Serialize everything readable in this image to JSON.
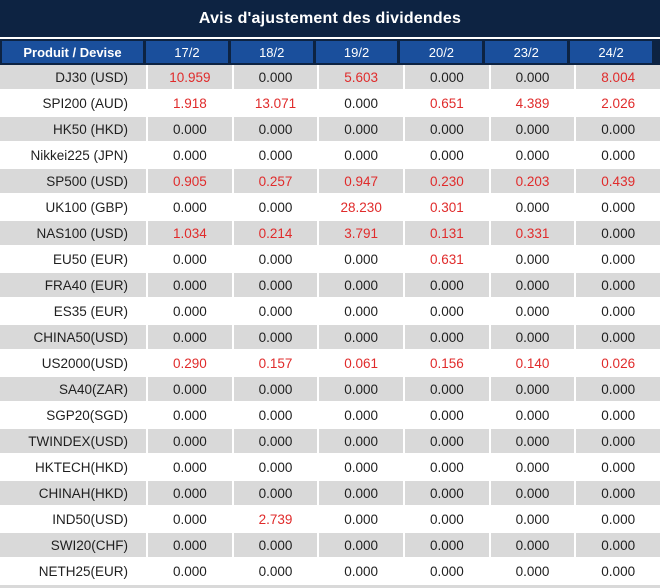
{
  "title": "Avis d'ajustement des dividendes",
  "colors": {
    "title_bar_bg": "#0d2342",
    "header_bg": "#1a4f9c",
    "row_alt_bg": "#d9d9d9",
    "nonzero_value": "#e02b2b",
    "text": "#1f1f1f"
  },
  "table": {
    "columns": [
      "Produit / Devise",
      "17/2",
      "18/2",
      "19/2",
      "20/2",
      "23/2",
      "24/2"
    ],
    "rows": [
      {
        "product": "DJ30 (USD)",
        "values": [
          "10.959",
          "0.000",
          "5.603",
          "0.000",
          "0.000",
          "8.004"
        ]
      },
      {
        "product": "SPI200 (AUD)",
        "values": [
          "1.918",
          "13.071",
          "0.000",
          "0.651",
          "4.389",
          "2.026"
        ]
      },
      {
        "product": "HK50 (HKD)",
        "values": [
          "0.000",
          "0.000",
          "0.000",
          "0.000",
          "0.000",
          "0.000"
        ]
      },
      {
        "product": "Nikkei225 (JPN)",
        "values": [
          "0.000",
          "0.000",
          "0.000",
          "0.000",
          "0.000",
          "0.000"
        ]
      },
      {
        "product": "SP500 (USD)",
        "values": [
          "0.905",
          "0.257",
          "0.947",
          "0.230",
          "0.203",
          "0.439"
        ]
      },
      {
        "product": "UK100 (GBP)",
        "values": [
          "0.000",
          "0.000",
          "28.230",
          "0.301",
          "0.000",
          "0.000"
        ]
      },
      {
        "product": "NAS100 (USD)",
        "values": [
          "1.034",
          "0.214",
          "3.791",
          "0.131",
          "0.331",
          "0.000"
        ]
      },
      {
        "product": "EU50 (EUR)",
        "values": [
          "0.000",
          "0.000",
          "0.000",
          "0.631",
          "0.000",
          "0.000"
        ]
      },
      {
        "product": "FRA40 (EUR)",
        "values": [
          "0.000",
          "0.000",
          "0.000",
          "0.000",
          "0.000",
          "0.000"
        ]
      },
      {
        "product": "ES35 (EUR)",
        "values": [
          "0.000",
          "0.000",
          "0.000",
          "0.000",
          "0.000",
          "0.000"
        ]
      },
      {
        "product": "CHINA50(USD)",
        "values": [
          "0.000",
          "0.000",
          "0.000",
          "0.000",
          "0.000",
          "0.000"
        ]
      },
      {
        "product": "US2000(USD)",
        "values": [
          "0.290",
          "0.157",
          "0.061",
          "0.156",
          "0.140",
          "0.026"
        ]
      },
      {
        "product": "SA40(ZAR)",
        "values": [
          "0.000",
          "0.000",
          "0.000",
          "0.000",
          "0.000",
          "0.000"
        ]
      },
      {
        "product": "SGP20(SGD)",
        "values": [
          "0.000",
          "0.000",
          "0.000",
          "0.000",
          "0.000",
          "0.000"
        ]
      },
      {
        "product": "TWINDEX(USD)",
        "values": [
          "0.000",
          "0.000",
          "0.000",
          "0.000",
          "0.000",
          "0.000"
        ]
      },
      {
        "product": "HKTECH(HKD)",
        "values": [
          "0.000",
          "0.000",
          "0.000",
          "0.000",
          "0.000",
          "0.000"
        ]
      },
      {
        "product": "CHINAH(HKD)",
        "values": [
          "0.000",
          "0.000",
          "0.000",
          "0.000",
          "0.000",
          "0.000"
        ]
      },
      {
        "product": "IND50(USD)",
        "values": [
          "0.000",
          "2.739",
          "0.000",
          "0.000",
          "0.000",
          "0.000"
        ]
      },
      {
        "product": "SWI20(CHF)",
        "values": [
          "0.000",
          "0.000",
          "0.000",
          "0.000",
          "0.000",
          "0.000"
        ]
      },
      {
        "product": "NETH25(EUR)",
        "values": [
          "0.000",
          "0.000",
          "0.000",
          "0.000",
          "0.000",
          "0.000"
        ]
      }
    ]
  }
}
